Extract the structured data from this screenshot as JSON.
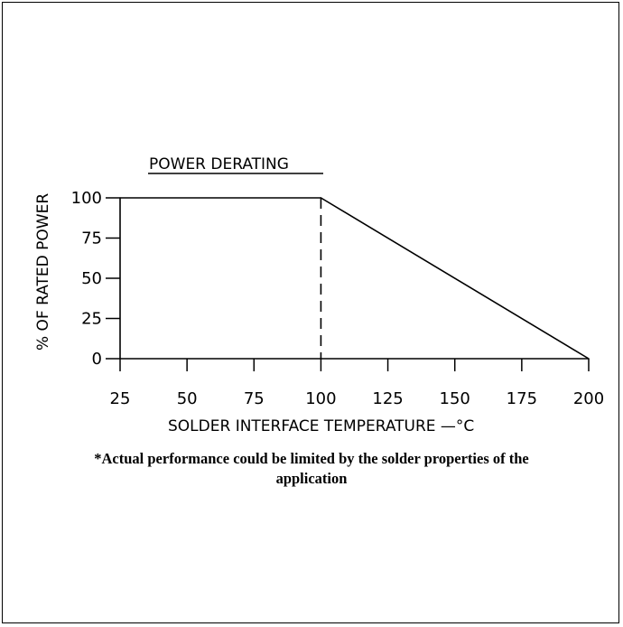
{
  "chart_data": {
    "type": "line",
    "title": "POWER DERATING",
    "xlabel": "SOLDER INTERFACE TEMPERATURE —°C",
    "ylabel": "% OF RATED POWER",
    "xlim": [
      25,
      200
    ],
    "ylim": [
      0,
      100
    ],
    "x_ticks": [
      "25",
      "50",
      "75",
      "100",
      "125",
      "150",
      "175",
      "200"
    ],
    "y_ticks": [
      "100",
      "75",
      "50",
      "25",
      "0"
    ],
    "series": [
      {
        "x": [
          25,
          100,
          200
        ],
        "y": [
          100,
          100,
          0
        ]
      }
    ],
    "reference_lines": [
      {
        "style": "dashed",
        "x": 100,
        "y_from": 0,
        "y_to": 100
      }
    ],
    "grid": false
  },
  "footnote": {
    "line1": "*Actual performance could be limited by the solder properties of the",
    "line2": "application"
  },
  "colors": {
    "ink": "#000000",
    "background": "#ffffff"
  }
}
